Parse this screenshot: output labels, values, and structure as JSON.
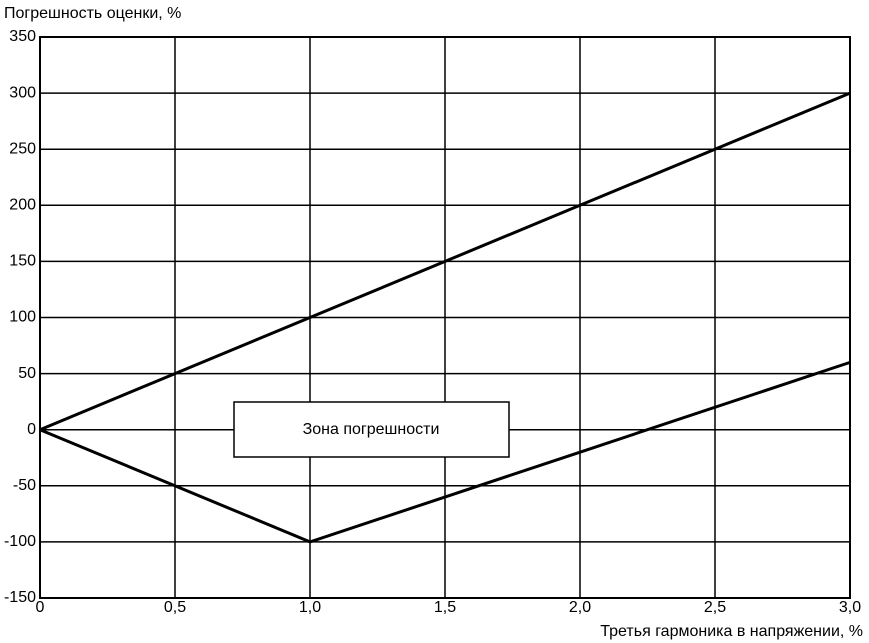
{
  "chart_data": {
    "type": "line",
    "ylabel": "Погрешность оценки, %",
    "xlabel": "Третья гармоника в напряжении, %",
    "annotation": "Зона погрешности",
    "x": [
      0,
      1,
      2,
      3
    ],
    "series": [
      {
        "color": "#000000",
        "values": [
          0,
          100,
          200,
          300
        ]
      },
      {
        "color": "#000000",
        "values": [
          0,
          -100,
          -20,
          60
        ]
      }
    ],
    "xlim": [
      0,
      3
    ],
    "xticks": [
      0,
      {
        "value": 0.5,
        "label": "0,5"
      },
      {
        "value": 1,
        "label": "1,0"
      },
      {
        "value": 1.5,
        "label": "1,5"
      },
      {
        "value": 2,
        "label": "2,0"
      },
      {
        "value": 2.5,
        "label": "2,5"
      },
      {
        "value": 3,
        "label": "3,0"
      }
    ],
    "ylim": [
      -150,
      350
    ],
    "yticks": [
      -150,
      -100,
      -50,
      0,
      50,
      100,
      150,
      200,
      250,
      300,
      350
    ],
    "grid": true
  }
}
